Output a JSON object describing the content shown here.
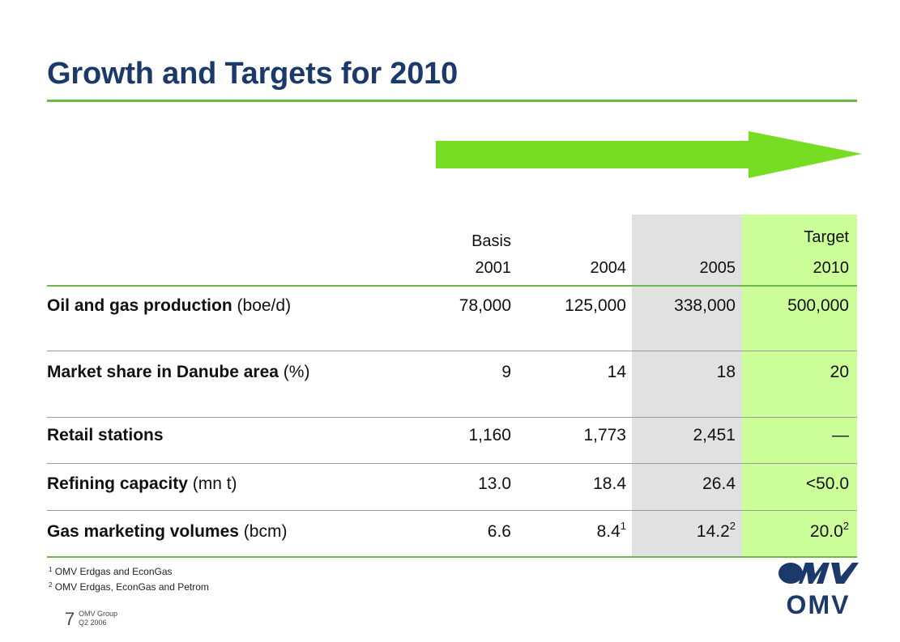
{
  "title": "Growth and Targets for 2010",
  "table": {
    "headers": [
      {
        "line1": "Basis",
        "line2": "2001"
      },
      {
        "line1": "",
        "line2": "2004"
      },
      {
        "line1": "",
        "line2": "2005"
      },
      {
        "line1": "Target",
        "line2": "2010"
      }
    ],
    "rows": [
      {
        "label_bold": "Oil and gas production",
        "label_rest": " (boe/d)",
        "values": [
          "78,000",
          "125,000",
          "338,000",
          "500,000"
        ],
        "sups": [
          "",
          "",
          "",
          ""
        ]
      },
      {
        "label_bold": "Market share in Danube area",
        "label_rest": " (%)",
        "values": [
          "9",
          "14",
          "18",
          "20"
        ],
        "sups": [
          "",
          "",
          "",
          ""
        ]
      },
      {
        "label_bold": "Retail stations",
        "label_rest": "",
        "values": [
          "1,160",
          "1,773",
          "2,451",
          "—"
        ],
        "sups": [
          "",
          "",
          "",
          ""
        ]
      },
      {
        "label_bold": "Refining capacity",
        "label_rest": " (mn t)",
        "values": [
          "13.0",
          "18.4",
          "26.4",
          "<50.0"
        ],
        "sups": [
          "",
          "",
          "",
          ""
        ]
      },
      {
        "label_bold": "Gas marketing volumes",
        "label_rest": " (bcm)",
        "values": [
          "6.6",
          "8.4",
          "14.2",
          "20.0"
        ],
        "sups": [
          "",
          "1",
          "2",
          "2"
        ]
      }
    ]
  },
  "footnotes": [
    {
      "mark": "1",
      "text": "OMV Erdgas and EconGas"
    },
    {
      "mark": "2",
      "text": "OMV Erdgas, EconGas and Petrom"
    }
  ],
  "footer": {
    "page": "7",
    "line1": "OMV Group",
    "line2": "Q2 2006"
  },
  "logo": {
    "text": "OMV"
  },
  "colors": {
    "title": "#1b3a6b",
    "accent_green": "#6fb64a",
    "arrow": "#77dd22",
    "highlight_2005": "#e1e1e1",
    "highlight_target": "#ccff99",
    "logo": "#1b3a6b"
  }
}
